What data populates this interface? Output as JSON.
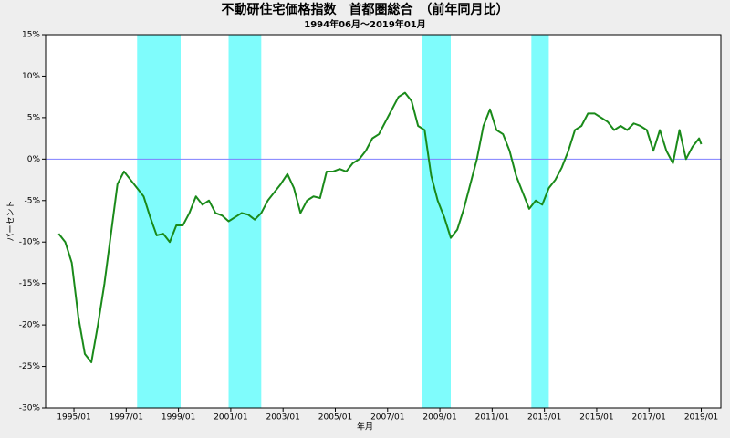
{
  "chart_data": {
    "type": "line",
    "title": "不動研住宅価格指数　首都圏総合　（前年同月比）",
    "subtitle": "1994年06月～2019年01月",
    "x_label": "年月",
    "y_label": "パーセント",
    "x": [
      "1994/06",
      "1994/09",
      "1994/12",
      "1995/03",
      "1995/06",
      "1995/09",
      "1995/12",
      "1996/03",
      "1996/06",
      "1996/09",
      "1996/12",
      "1997/03",
      "1997/06",
      "1997/09",
      "1997/12",
      "1998/03",
      "1998/06",
      "1998/09",
      "1998/12",
      "1999/03",
      "1999/06",
      "1999/09",
      "1999/12",
      "2000/03",
      "2000/06",
      "2000/09",
      "2000/12",
      "2001/03",
      "2001/06",
      "2001/09",
      "2001/12",
      "2002/03",
      "2002/06",
      "2002/09",
      "2002/12",
      "2003/03",
      "2003/06",
      "2003/09",
      "2003/12",
      "2004/03",
      "2004/06",
      "2004/09",
      "2004/12",
      "2005/03",
      "2005/06",
      "2005/09",
      "2005/12",
      "2006/03",
      "2006/06",
      "2006/09",
      "2006/12",
      "2007/03",
      "2007/06",
      "2007/09",
      "2007/12",
      "2008/03",
      "2008/06",
      "2008/09",
      "2008/12",
      "2009/03",
      "2009/06",
      "2009/09",
      "2009/12",
      "2010/03",
      "2010/06",
      "2010/09",
      "2010/12",
      "2011/03",
      "2011/06",
      "2011/09",
      "2011/12",
      "2012/03",
      "2012/06",
      "2012/09",
      "2012/12",
      "2013/03",
      "2013/06",
      "2013/09",
      "2013/12",
      "2014/03",
      "2014/06",
      "2014/09",
      "2014/12",
      "2015/03",
      "2015/06",
      "2015/09",
      "2015/12",
      "2016/03",
      "2016/06",
      "2016/09",
      "2016/12",
      "2017/03",
      "2017/06",
      "2017/09",
      "2017/12",
      "2018/03",
      "2018/06",
      "2018/09",
      "2018/12",
      "2019/01"
    ],
    "series": [
      {
        "name": "首都圏総合",
        "color": "#1a8a1a",
        "values": [
          -9,
          -10,
          -12.5,
          -19,
          -23.5,
          -24.5,
          -20,
          -15,
          -9,
          -3,
          -1.5,
          -2.5,
          -3.5,
          -4.5,
          -7,
          -9.2,
          -9,
          -10,
          -8,
          -8,
          -6.5,
          -4.5,
          -5.5,
          -5,
          -6.5,
          -6.8,
          -7.5,
          -7,
          -6.5,
          -6.7,
          -7.3,
          -6.5,
          -5,
          -4,
          -3,
          -1.8,
          -3.5,
          -6.5,
          -5,
          -4.5,
          -4.7,
          -1.5,
          -1.5,
          -1.2,
          -1.5,
          -0.5,
          0,
          1,
          2.5,
          3,
          4.5,
          6,
          7.5,
          8,
          7,
          4,
          3.5,
          -2,
          -5,
          -7,
          -9.5,
          -8.5,
          -6,
          -3,
          0,
          4,
          6,
          3.5,
          3,
          1,
          -2,
          -4,
          -6,
          -5,
          -5.5,
          -3.5,
          -2.5,
          -1,
          1,
          3.5,
          4,
          5.5,
          5.5,
          5,
          4.5,
          3.5,
          4,
          3.5,
          4.3,
          4,
          3.5,
          1,
          3.5,
          1,
          -0.5,
          3.5,
          0,
          1.5,
          2.5,
          1.8
        ]
      }
    ],
    "bands": [
      [
        "1997/06",
        "1999/02"
      ],
      [
        "2000/12",
        "2002/03"
      ],
      [
        "2008/05",
        "2009/06"
      ],
      [
        "2012/07",
        "2013/03"
      ]
    ],
    "reference_line": 0,
    "xlim": [
      "1993/12",
      "2019/10"
    ],
    "xticks": [
      "1995/01",
      "1997/01",
      "1999/01",
      "2001/01",
      "2003/01",
      "2005/01",
      "2007/01",
      "2009/01",
      "2011/01",
      "2013/01",
      "2015/01",
      "2017/01",
      "2019/01"
    ],
    "ylim": [
      -30,
      15
    ],
    "yticks": [
      {
        "value": -30,
        "label": "-30%"
      },
      {
        "value": -25,
        "label": "-25%"
      },
      {
        "value": -20,
        "label": "-20%"
      },
      {
        "value": -15,
        "label": "-15%"
      },
      {
        "value": -10,
        "label": "-10%"
      },
      {
        "value": -5,
        "label": "-5%"
      },
      {
        "value": 0,
        "label": "0%"
      },
      {
        "value": 5,
        "label": "5%"
      },
      {
        "value": 10,
        "label": "10%"
      },
      {
        "value": 15,
        "label": "15%"
      }
    ]
  }
}
